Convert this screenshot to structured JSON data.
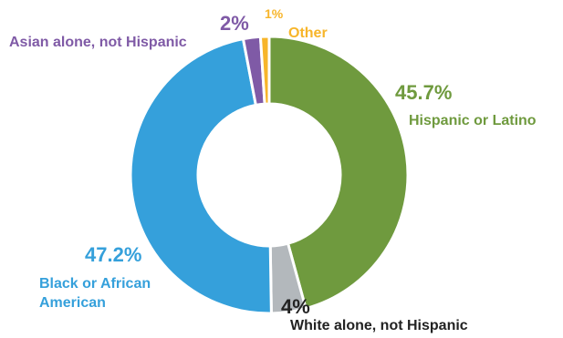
{
  "chart_data": {
    "type": "pie",
    "donut": true,
    "title": "",
    "legend": "none",
    "slices": [
      {
        "name": "Hispanic or Latino",
        "value": 45.7,
        "label": "45.7%",
        "color": "#6f9a3e"
      },
      {
        "name": "White alone, not Hispanic",
        "value": 4,
        "label": "4%",
        "color": "#b3b8bc"
      },
      {
        "name": "Black or African American",
        "value": 47.2,
        "label": "47.2%",
        "color": "#35a0db"
      },
      {
        "name": "Asian alone, not Hispanic",
        "value": 2,
        "label": "2%",
        "color": "#7f5aa6"
      },
      {
        "name": "Other",
        "value": 1,
        "label": "1%",
        "color": "#f7b52a"
      }
    ],
    "label_colors": {
      "Hispanic or Latino": "#6f9a3e",
      "White alone, not Hispanic": "#222222",
      "Black or African American": "#35a0db",
      "Asian alone, not Hispanic": "#7f5aa6",
      "Other": "#f7b52a"
    },
    "white_label": {
      "name_line1": "White alone, not Hispanic"
    },
    "black_label": {
      "name_line1": "Black or African",
      "name_line2": "American"
    }
  }
}
